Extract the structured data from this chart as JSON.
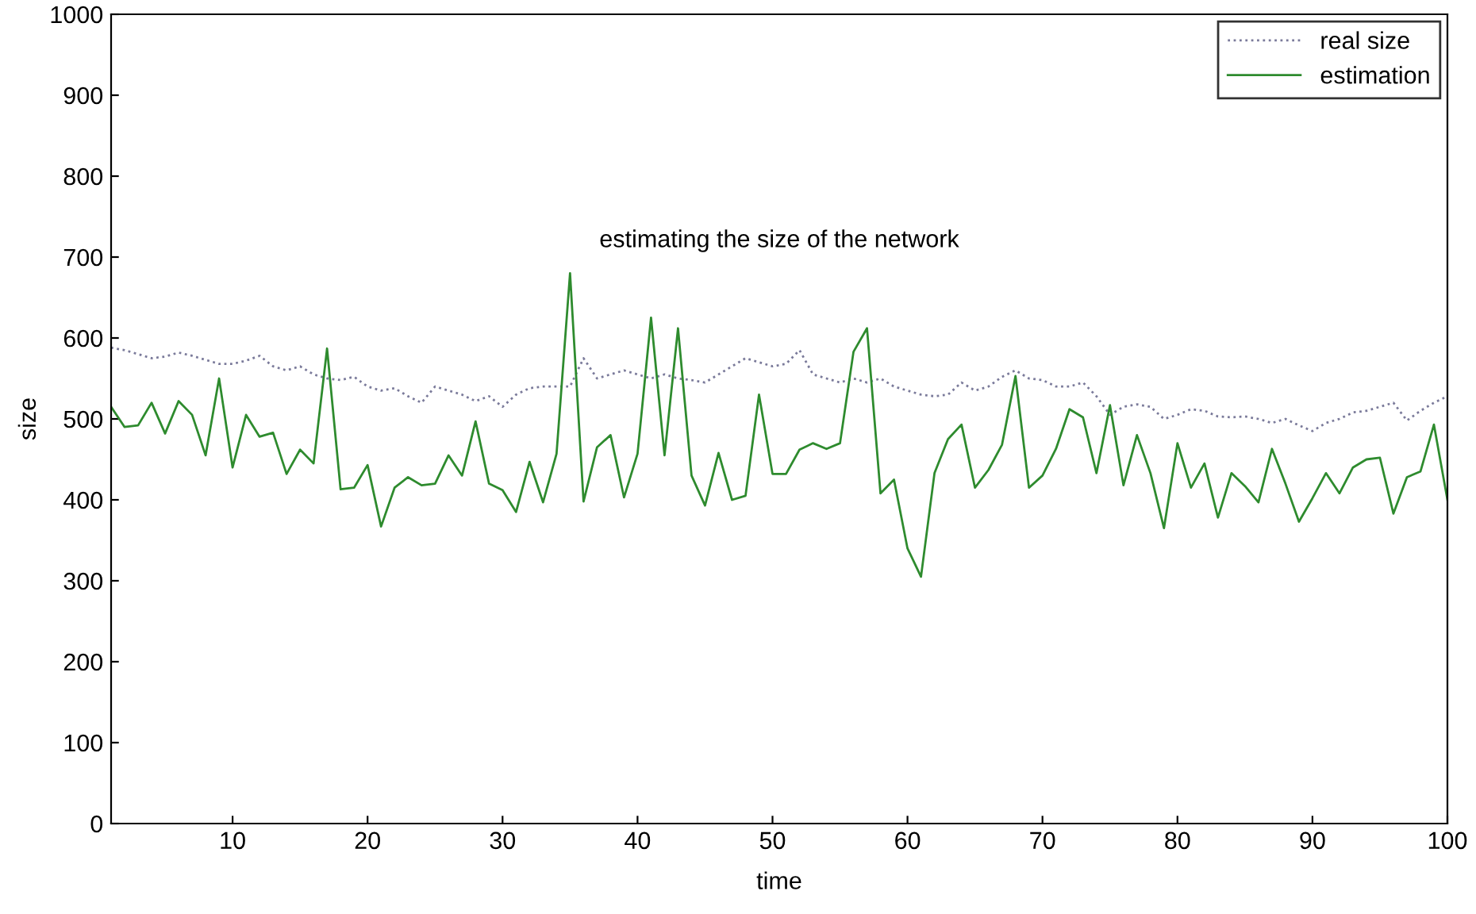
{
  "chart_data": {
    "type": "line",
    "title": "estimating the size of the network",
    "xlabel": "time",
    "ylabel": "size",
    "x": [
      1,
      2,
      3,
      4,
      5,
      6,
      7,
      8,
      9,
      10,
      11,
      12,
      13,
      14,
      15,
      16,
      17,
      18,
      19,
      20,
      21,
      22,
      23,
      24,
      25,
      26,
      27,
      28,
      29,
      30,
      31,
      32,
      33,
      34,
      35,
      36,
      37,
      38,
      39,
      40,
      41,
      42,
      43,
      44,
      45,
      46,
      47,
      48,
      49,
      50,
      51,
      52,
      53,
      54,
      55,
      56,
      57,
      58,
      59,
      60,
      61,
      62,
      63,
      64,
      65,
      66,
      67,
      68,
      69,
      70,
      71,
      72,
      73,
      74,
      75,
      76,
      77,
      78,
      79,
      80,
      81,
      82,
      83,
      84,
      85,
      86,
      87,
      88,
      89,
      90,
      91,
      92,
      93,
      94,
      95,
      96,
      97,
      98,
      99,
      100
    ],
    "series": [
      {
        "name": "real size",
        "color": "#7a7a9a",
        "line_style": "dotted",
        "values": [
          588,
          585,
          580,
          575,
          577,
          582,
          578,
          573,
          568,
          568,
          572,
          578,
          565,
          560,
          565,
          555,
          550,
          548,
          552,
          540,
          535,
          538,
          528,
          520,
          540,
          535,
          530,
          522,
          528,
          515,
          530,
          538,
          540,
          540,
          540,
          575,
          550,
          555,
          560,
          555,
          550,
          555,
          550,
          548,
          545,
          555,
          565,
          575,
          570,
          565,
          568,
          585,
          555,
          550,
          545,
          550,
          545,
          550,
          540,
          535,
          530,
          528,
          530,
          545,
          535,
          540,
          552,
          560,
          550,
          548,
          540,
          540,
          545,
          528,
          505,
          515,
          518,
          515,
          500,
          505,
          512,
          510,
          503,
          502,
          503,
          500,
          495,
          500,
          492,
          485,
          495,
          500,
          508,
          510,
          515,
          520,
          498,
          510,
          520,
          528
        ]
      },
      {
        "name": "estimation",
        "color": "#2e8b2e",
        "line_style": "solid",
        "values": [
          515,
          490,
          492,
          520,
          482,
          522,
          505,
          455,
          550,
          440,
          505,
          478,
          483,
          432,
          462,
          445,
          587,
          413,
          415,
          443,
          367,
          415,
          428,
          418,
          420,
          455,
          430,
          497,
          420,
          412,
          385,
          447,
          397,
          457,
          680,
          398,
          465,
          480,
          403,
          457,
          625,
          455,
          612,
          430,
          393,
          458,
          400,
          405,
          530,
          432,
          432,
          462,
          470,
          463,
          470,
          583,
          612,
          408,
          425,
          340,
          305,
          433,
          475,
          493,
          415,
          437,
          468,
          553,
          415,
          430,
          463,
          512,
          502,
          433,
          517,
          418,
          480,
          433,
          365,
          470,
          415,
          445,
          378,
          433,
          417,
          397,
          463,
          420,
          373,
          402,
          433,
          408,
          440,
          450,
          452,
          383,
          428,
          435,
          493,
          400
        ]
      }
    ],
    "xlim": [
      1,
      100
    ],
    "xticks": [
      10,
      20,
      30,
      40,
      50,
      60,
      70,
      80,
      90,
      100
    ],
    "ylim": [
      0,
      1000
    ],
    "yticks": [
      0,
      100,
      200,
      300,
      400,
      500,
      600,
      700,
      800,
      900,
      1000
    ],
    "grid": false,
    "legend": "top right",
    "marker": "none"
  }
}
